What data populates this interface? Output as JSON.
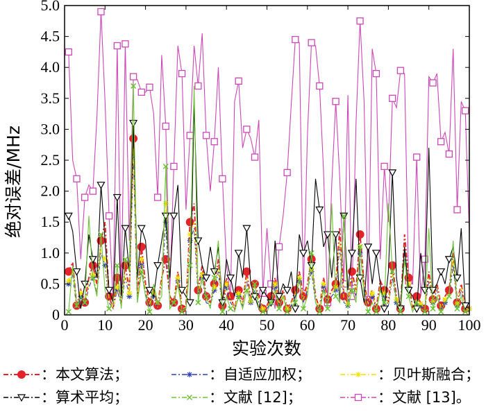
{
  "chart_data": {
    "type": "line",
    "xlabel": "实验次数",
    "ylabel": "绝对误差/MHz",
    "xlim": [
      0,
      100
    ],
    "ylim": [
      0,
      5
    ],
    "xticks": [
      "0",
      "10",
      "20",
      "30",
      "40",
      "50",
      "60",
      "70",
      "80",
      "90",
      "100"
    ],
    "yticks": [
      "0",
      "0.5",
      "1.0",
      "1.5",
      "2.0",
      "2.5",
      "3.0",
      "3.5",
      "4.0",
      "4.5",
      "5.0"
    ],
    "grid": false,
    "legend_position": "bottom",
    "x": [
      1,
      2,
      3,
      4,
      5,
      6,
      7,
      8,
      9,
      10,
      11,
      12,
      13,
      14,
      15,
      16,
      17,
      18,
      19,
      20,
      21,
      22,
      23,
      24,
      25,
      26,
      27,
      28,
      29,
      30,
      31,
      32,
      33,
      34,
      35,
      36,
      37,
      38,
      39,
      40,
      41,
      42,
      43,
      44,
      45,
      46,
      47,
      48,
      49,
      50,
      51,
      52,
      53,
      54,
      55,
      56,
      57,
      58,
      59,
      60,
      61,
      62,
      63,
      64,
      65,
      66,
      67,
      68,
      69,
      70,
      71,
      72,
      73,
      74,
      75,
      76,
      77,
      78,
      79,
      80,
      81,
      82,
      83,
      84,
      85,
      86,
      87,
      88,
      89,
      90,
      91,
      92,
      93,
      94,
      95,
      96,
      97,
      98,
      99,
      100
    ],
    "series": [
      {
        "name": "本文算法",
        "color": "#e3242b",
        "marker": "filled-circle",
        "values": [
          0.7,
          0.85,
          0.15,
          0.4,
          0.2,
          0.6,
          0.8,
          0.5,
          1.2,
          1.5,
          0.3,
          0.1,
          0.6,
          0.2,
          0.8,
          0.4,
          2.85,
          0.3,
          1.1,
          0.5,
          0.2,
          0.4,
          0.15,
          0.6,
          0.9,
          0.3,
          0.2,
          0.7,
          0.1,
          0.15,
          1.5,
          1.8,
          0.4,
          0.8,
          0.3,
          0.2,
          0.5,
          0.9,
          0.15,
          0.6,
          0.3,
          0.1,
          0.4,
          0.2,
          0.7,
          0.25,
          0.5,
          0.3,
          0.1,
          0.15,
          0.3,
          0.6,
          0.2,
          0.4,
          0.1,
          0.2,
          0.4,
          0.7,
          0.3,
          0.5,
          0.9,
          0.3,
          0.1,
          0.6,
          0.25,
          0.4,
          0.5,
          1.4,
          0.3,
          0.2,
          0.7,
          0.4,
          1.3,
          0.5,
          0.2,
          0.4,
          0.1,
          0.55,
          0.4,
          0.2,
          0.8,
          0.3,
          0.1,
          1.3,
          0.6,
          0.1,
          0.3,
          0.2,
          0.1,
          0.7,
          0.25,
          0.5,
          0.15,
          0.3,
          0.4,
          1.0,
          0.2,
          0.5,
          0.1,
          0.1
        ]
      },
      {
        "name": "自适应加权",
        "color": "#2b3fb0",
        "marker": "star",
        "values": [
          0.5,
          0.65,
          0.1,
          0.3,
          0.15,
          0.45,
          0.6,
          0.35,
          1.0,
          0.8,
          0.2,
          0.1,
          0.4,
          0.15,
          0.6,
          0.3,
          2.6,
          0.2,
          0.8,
          0.35,
          0.15,
          0.3,
          0.1,
          0.5,
          1.5,
          0.2,
          0.15,
          0.55,
          0.1,
          0.1,
          1.2,
          1.4,
          0.3,
          0.6,
          0.2,
          0.15,
          0.4,
          0.7,
          0.1,
          0.45,
          0.2,
          0.1,
          0.3,
          0.15,
          0.55,
          0.2,
          0.4,
          0.2,
          0.1,
          0.1,
          0.2,
          0.45,
          0.15,
          0.3,
          0.1,
          0.15,
          0.3,
          0.55,
          0.2,
          0.4,
          0.7,
          0.2,
          0.1,
          0.45,
          0.2,
          0.3,
          0.4,
          1.1,
          0.2,
          0.15,
          0.55,
          0.3,
          1.0,
          0.4,
          0.15,
          0.3,
          0.1,
          0.4,
          0.3,
          0.15,
          0.6,
          0.2,
          0.1,
          1.0,
          0.45,
          0.1,
          0.2,
          0.15,
          0.1,
          0.55,
          0.2,
          0.4,
          0.1,
          0.2,
          0.3,
          0.8,
          0.15,
          0.4,
          0.1,
          0.1
        ]
      },
      {
        "name": "贝叶斯融合",
        "color": "#f2e200",
        "marker": "star",
        "values": [
          0.55,
          0.7,
          0.12,
          0.35,
          0.18,
          0.5,
          0.65,
          0.4,
          1.05,
          0.9,
          0.25,
          0.1,
          0.45,
          0.18,
          0.65,
          0.35,
          2.7,
          0.25,
          0.9,
          0.4,
          0.18,
          0.35,
          0.12,
          0.55,
          1.8,
          0.25,
          0.18,
          0.6,
          0.1,
          0.12,
          1.3,
          1.5,
          0.35,
          0.65,
          0.25,
          0.18,
          0.45,
          0.75,
          0.12,
          0.5,
          0.25,
          0.1,
          0.35,
          0.18,
          0.6,
          0.22,
          0.45,
          0.25,
          0.1,
          0.12,
          0.25,
          0.5,
          0.18,
          0.35,
          0.1,
          0.18,
          0.35,
          0.6,
          0.25,
          0.45,
          0.75,
          0.25,
          0.1,
          0.5,
          0.22,
          0.35,
          0.45,
          1.2,
          0.25,
          0.18,
          0.6,
          0.35,
          1.1,
          0.45,
          0.18,
          0.35,
          0.1,
          0.45,
          0.35,
          0.18,
          0.65,
          0.25,
          0.1,
          1.1,
          0.5,
          0.1,
          0.25,
          0.18,
          0.1,
          0.6,
          0.22,
          0.45,
          0.12,
          0.25,
          0.35,
          0.9,
          0.18,
          0.45,
          0.1,
          0.1
        ]
      },
      {
        "name": "算术平均",
        "color": "#000000",
        "marker": "open-triangle-down",
        "values": [
          1.6,
          1.35,
          0.7,
          0.1,
          0.5,
          1.3,
          0.9,
          0.6,
          2.1,
          1.2,
          0.4,
          0.2,
          1.9,
          0.3,
          1.4,
          0.7,
          3.1,
          0.6,
          1.4,
          1.2,
          0.4,
          0.3,
          0.8,
          1.2,
          1.6,
          0.6,
          1.6,
          2.1,
          0.4,
          0.3,
          0.2,
          3.4,
          1.2,
          0.8,
          0.6,
          1.1,
          0.7,
          1.1,
          0.2,
          0.9,
          0.6,
          0.3,
          1.0,
          0.6,
          1.4,
          0.5,
          0.3,
          0.1,
          0.4,
          0.3,
          0.2,
          1.2,
          0.3,
          0.5,
          0.4,
          0.7,
          0.1,
          1.3,
          1.0,
          1.2,
          0.8,
          2.2,
          1.7,
          1.1,
          1.3,
          0.6,
          1.3,
          0.2,
          1.6,
          0.4,
          1.0,
          2.2,
          0.6,
          0.2,
          1.1,
          0.5,
          1.0,
          0.5,
          0.1,
          0.7,
          2.3,
          0.6,
          0.1,
          1.1,
          0.4,
          0.3,
          0.1,
          1.0,
          0.4,
          2.7,
          0.4,
          0.5,
          0.7,
          0.5,
          0.9,
          1.1,
          0.6,
          1.4,
          0.15,
          0.1
        ]
      },
      {
        "name": "文献 [12]",
        "color": "#6cc334",
        "marker": "x",
        "values": [
          0.05,
          0.8,
          0.15,
          0.3,
          0.2,
          1.6,
          0.6,
          0.3,
          1.3,
          0.4,
          0.1,
          0.2,
          0.8,
          0.1,
          0.9,
          0.7,
          3.7,
          0.2,
          0.7,
          0.3,
          0.05,
          0.5,
          0.2,
          0.3,
          2.4,
          0.1,
          0.2,
          0.5,
          0.05,
          0.1,
          0.8,
          3.7,
          0.2,
          0.6,
          0.3,
          0.1,
          0.6,
          1.2,
          0.05,
          0.3,
          0.1,
          0.05,
          0.3,
          0.1,
          0.4,
          0.2,
          0.5,
          0.1,
          0.05,
          0.05,
          0.2,
          0.4,
          0.1,
          0.3,
          0.05,
          0.1,
          0.2,
          0.6,
          0.1,
          0.3,
          1.0,
          0.2,
          0.05,
          0.4,
          0.1,
          1.8,
          0.3,
          0.2,
          1.6,
          0.1,
          0.4,
          0.2,
          1.1,
          0.3,
          0.05,
          0.2,
          0.05,
          0.4,
          0.2,
          1.8,
          0.7,
          0.2,
          0.05,
          0.9,
          0.3,
          0.05,
          0.2,
          0.1,
          0.05,
          1.4,
          0.1,
          0.3,
          0.05,
          0.2,
          0.3,
          1.2,
          0.1,
          0.3,
          0.05,
          0.05
        ]
      },
      {
        "name": "文献 [13]",
        "color": "#cc46b6",
        "marker": "open-square",
        "values": [
          4.25,
          2.5,
          2.2,
          0.9,
          1.9,
          2.1,
          2.0,
          3.2,
          4.9,
          3.45,
          1.6,
          0.2,
          4.35,
          0.3,
          4.38,
          1.2,
          3.85,
          3.8,
          3.6,
          3.6,
          3.68,
          3.25,
          1.9,
          4.2,
          3.05,
          0.4,
          2.4,
          4.35,
          3.9,
          1.7,
          2.9,
          4.35,
          3.7,
          4.55,
          2.9,
          2.0,
          2.8,
          4.0,
          2.2,
          0.8,
          0.3,
          3.45,
          3.78,
          2.7,
          3.0,
          2.85,
          2.55,
          3.15,
          0.35,
          1.4,
          0.5,
          0.1,
          1.1,
          1.6,
          2.3,
          3.4,
          4.45,
          4.4,
          0.35,
          2.9,
          4.4,
          4.35,
          3.7,
          2.3,
          0.2,
          2.1,
          3.45,
          2.2,
          0.5,
          3.55,
          0.3,
          3.1,
          4.75,
          3.45,
          0.25,
          4.3,
          3.9,
          0.9,
          2.4,
          1.5,
          3.5,
          3.35,
          3.95,
          3.9,
          0.55,
          0.5,
          2.55,
          0.3,
          0.9,
          3.85,
          3.75,
          3.9,
          2.8,
          2.95,
          2.6,
          4.3,
          1.7,
          3.45,
          3.3,
          1.3
        ]
      }
    ]
  },
  "legend": {
    "items": [
      {
        "label": "：本文算法；"
      },
      {
        "label": "：自适应加权；"
      },
      {
        "label": "：贝叶斯融合；"
      },
      {
        "label": "：算术平均；"
      },
      {
        "label": "：文献 [12]；"
      },
      {
        "label": "：文献 [13]。"
      }
    ]
  }
}
